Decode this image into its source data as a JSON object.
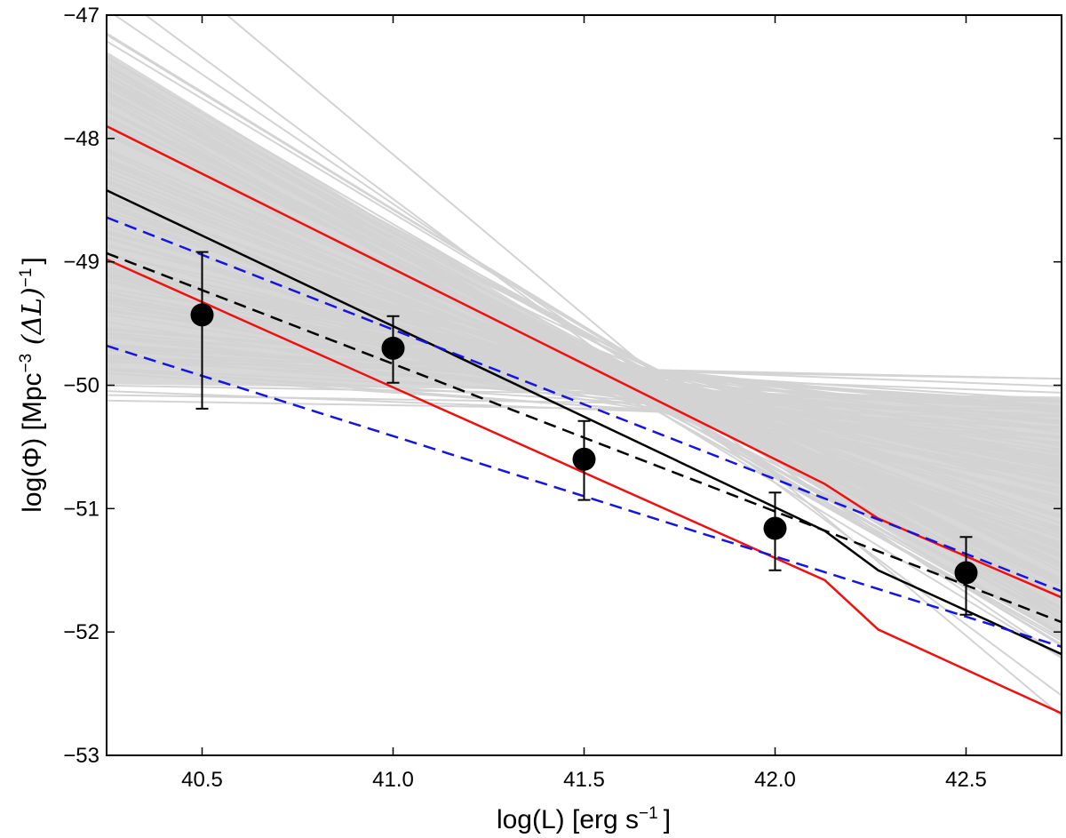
{
  "chart_data": {
    "type": "line",
    "title": "",
    "xlabel_main": "log(L) [erg s",
    "xlabel_sup": "−1",
    "xlabel_end": "]",
    "ylabel_main": "log(Φ) [Mpc",
    "ylabel_sup1": "−3",
    "ylabel_mid": " (ΔL)",
    "ylabel_sup2": "−1",
    "ylabel_end": "]",
    "xlim": [
      40.25,
      42.75
    ],
    "ylim": [
      -53,
      -47
    ],
    "xticks": [
      40.5,
      41.0,
      41.5,
      42.0,
      42.5
    ],
    "xtick_labels": [
      "40.5",
      "41.0",
      "41.5",
      "42.0",
      "42.5"
    ],
    "yticks": [
      -53,
      -52,
      -51,
      -50,
      -49,
      -48,
      -47
    ],
    "ytick_labels": [
      "−53",
      "−52",
      "−51",
      "−50",
      "−49",
      "−48",
      "−47"
    ],
    "grid": false,
    "colors": {
      "samples": "#d3d3d3",
      "fill": "#d8d8d8",
      "best": "#000000",
      "bounds": "#ee1111",
      "dashed_black": "#000000",
      "dashed_blue": "#1515dd",
      "points": "#000000"
    },
    "samples_note": "many grey posterior sample lines spanning the region between the steepest and flattest fits",
    "sample_pivot": {
      "x": 41.7,
      "y": -50.05
    },
    "sample_slopes_extreme": {
      "min": -1.9,
      "max": -0.04
    },
    "series": [
      {
        "name": "best-fit",
        "style": "solid",
        "color": "#000000",
        "x": [
          40.25,
          42.13,
          42.27,
          42.75
        ],
        "y": [
          -48.42,
          -51.18,
          -51.5,
          -52.18
        ]
      },
      {
        "name": "upper bound",
        "style": "solid",
        "color": "#ee1111",
        "x": [
          40.25,
          42.13,
          42.27,
          42.75
        ],
        "y": [
          -47.9,
          -50.8,
          -51.08,
          -51.72
        ]
      },
      {
        "name": "lower bound",
        "style": "solid",
        "color": "#ee1111",
        "x": [
          40.25,
          42.13,
          42.27,
          42.75
        ],
        "y": [
          -48.98,
          -51.58,
          -51.98,
          -52.66
        ]
      },
      {
        "name": "dashed fit",
        "style": "dashed",
        "color": "#000000",
        "x": [
          40.25,
          42.75
        ],
        "y": [
          -48.93,
          -51.92
        ]
      },
      {
        "name": "blue dashed upper",
        "style": "dashed",
        "color": "#1515dd",
        "x": [
          40.25,
          42.75
        ],
        "y": [
          -48.64,
          -51.67
        ]
      },
      {
        "name": "blue dashed lower",
        "style": "dashed",
        "color": "#1515dd",
        "x": [
          40.25,
          42.75
        ],
        "y": [
          -49.68,
          -52.12
        ]
      }
    ],
    "points": [
      {
        "x": 40.5,
        "y": -49.43,
        "err_low": 0.76,
        "err_high": 0.51
      },
      {
        "x": 41.0,
        "y": -49.7,
        "err_low": 0.28,
        "err_high": 0.26
      },
      {
        "x": 41.5,
        "y": -50.6,
        "err_low": 0.33,
        "err_high": 0.31
      },
      {
        "x": 42.0,
        "y": -51.16,
        "err_low": 0.34,
        "err_high": 0.29
      },
      {
        "x": 42.5,
        "y": -51.52,
        "err_low": 0.34,
        "err_high": 0.29
      }
    ]
  }
}
